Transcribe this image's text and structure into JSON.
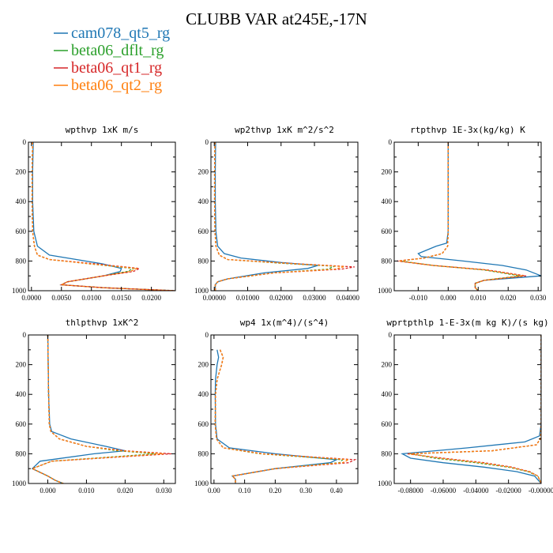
{
  "title": "CLUBB VAR at245E,-17N",
  "colors": {
    "cam078_qt5_rg": "#1f77b4",
    "beta06_dflt_rg": "#2ca02c",
    "beta06_qt1_rg": "#d62728",
    "beta06_qt2_rg": "#ff7f0e"
  },
  "legend": [
    {
      "name": "cam078_qt5_rg",
      "color": "#1f77b4",
      "dash": "solid"
    },
    {
      "name": "beta06_dflt_rg",
      "color": "#2ca02c",
      "dash": "dashed"
    },
    {
      "name": "beta06_qt1_rg",
      "color": "#d62728",
      "dash": "dashed"
    },
    {
      "name": "beta06_qt2_rg",
      "color": "#ff7f0e",
      "dash": "dashed"
    }
  ],
  "chart_data": [
    {
      "type": "line",
      "title": "wpthvp  1xK m/s",
      "xlim": [
        -0.0005,
        0.024
      ],
      "ylim": [
        0,
        1000
      ],
      "xticks": [
        0.0,
        0.005,
        0.01,
        0.015,
        0.02
      ],
      "xticklabels": [
        "0.0000",
        "0.0050",
        "0.0100",
        "0.0150",
        "0.0200"
      ],
      "yticks": [
        0,
        200,
        400,
        600,
        800,
        1000
      ],
      "series": [
        {
          "key": "cam078_qt5_rg",
          "y": [
            0,
            200,
            400,
            600,
            700,
            760,
            780,
            820,
            850,
            870,
            900,
            940,
            960,
            980,
            1000
          ],
          "x": [
            0.0003,
            0.0002,
            0.0002,
            0.0004,
            0.001,
            0.003,
            0.006,
            0.012,
            0.015,
            0.0148,
            0.012,
            0.006,
            0.005,
            0.012,
            0.024
          ]
        },
        {
          "key": "beta06_dflt_rg",
          "y": [
            0,
            200,
            400,
            600,
            700,
            760,
            790,
            820,
            850,
            870,
            900,
            940,
            960,
            980,
            1000
          ],
          "x": [
            0.0002,
            0.0001,
            0.0001,
            0.0002,
            0.0005,
            0.001,
            0.003,
            0.01,
            0.017,
            0.016,
            0.012,
            0.006,
            0.005,
            0.012,
            0.024
          ]
        },
        {
          "key": "beta06_qt1_rg",
          "y": [
            0,
            200,
            400,
            600,
            700,
            760,
            790,
            820,
            850,
            870,
            900,
            940,
            960,
            980,
            1000
          ],
          "x": [
            0.0002,
            0.0001,
            0.0001,
            0.0002,
            0.0005,
            0.001,
            0.003,
            0.011,
            0.018,
            0.017,
            0.012,
            0.006,
            0.005,
            0.012,
            0.024
          ]
        },
        {
          "key": "beta06_qt2_rg",
          "y": [
            0,
            200,
            400,
            600,
            700,
            760,
            790,
            820,
            850,
            870,
            900,
            940,
            960,
            980,
            1000
          ],
          "x": [
            0.0002,
            0.0001,
            0.0001,
            0.0002,
            0.0005,
            0.001,
            0.003,
            0.01,
            0.0175,
            0.0165,
            0.012,
            0.006,
            0.005,
            0.012,
            0.024
          ]
        }
      ]
    },
    {
      "type": "line",
      "title": "wp2thvp  1xK m^2/s^2",
      "xlim": [
        -0.001,
        0.043
      ],
      "ylim": [
        0,
        1000
      ],
      "xticks": [
        0.0,
        0.01,
        0.02,
        0.03,
        0.04
      ],
      "xticklabels": [
        "0.00000",
        "0.01000",
        "0.02000",
        "0.03000",
        "0.04000"
      ],
      "yticks": [
        0,
        200,
        400,
        600,
        800,
        1000
      ],
      "series": [
        {
          "key": "cam078_qt5_rg",
          "y": [
            0,
            200,
            400,
            600,
            700,
            750,
            780,
            810,
            830,
            850,
            880,
            920,
            940,
            960,
            1000
          ],
          "x": [
            0.0004,
            0.0003,
            0.0003,
            0.0005,
            0.001,
            0.003,
            0.008,
            0.02,
            0.031,
            0.028,
            0.015,
            0.004,
            0.001,
            0.0003,
            0.0003
          ]
        },
        {
          "key": "beta06_dflt_rg",
          "y": [
            0,
            200,
            400,
            600,
            700,
            760,
            790,
            815,
            835,
            855,
            880,
            920,
            940,
            960,
            1000
          ],
          "x": [
            0.0002,
            0.0001,
            0.0001,
            0.0002,
            0.0005,
            0.0015,
            0.004,
            0.02,
            0.036,
            0.034,
            0.018,
            0.004,
            0.001,
            0.0003,
            0.0003
          ]
        },
        {
          "key": "beta06_qt1_rg",
          "y": [
            0,
            200,
            400,
            600,
            700,
            760,
            790,
            815,
            840,
            855,
            880,
            920,
            940,
            960,
            1000
          ],
          "x": [
            0.0002,
            0.0001,
            0.0001,
            0.0002,
            0.0005,
            0.0015,
            0.004,
            0.022,
            0.042,
            0.038,
            0.018,
            0.004,
            0.001,
            0.0003,
            0.0003
          ]
        },
        {
          "key": "beta06_qt2_rg",
          "y": [
            0,
            200,
            400,
            600,
            700,
            760,
            790,
            815,
            838,
            855,
            880,
            920,
            940,
            960,
            1000
          ],
          "x": [
            0.0002,
            0.0001,
            0.0001,
            0.0002,
            0.0005,
            0.0015,
            0.004,
            0.021,
            0.039,
            0.036,
            0.018,
            0.004,
            0.001,
            0.0003,
            0.0003
          ]
        }
      ]
    },
    {
      "type": "line",
      "title": "rtpthvp  1E-3x(kg/kg) K",
      "xlim": [
        -0.018,
        0.031
      ],
      "ylim": [
        0,
        1000
      ],
      "xticks": [
        -0.01,
        0.0,
        0.01,
        0.02,
        0.03
      ],
      "xticklabels": [
        "-0.010",
        "0.000",
        "0.010",
        "0.020",
        "0.030"
      ],
      "yticks": [
        0,
        200,
        400,
        600,
        800,
        1000
      ],
      "series": [
        {
          "key": "cam078_qt5_rg",
          "y": [
            0,
            300,
            600,
            680,
            700,
            750,
            770,
            800,
            830,
            860,
            900,
            930,
            950,
            980,
            1000
          ],
          "x": [
            0.0,
            0.0,
            0.0,
            -0.0005,
            -0.004,
            -0.01,
            -0.009,
            0.005,
            0.018,
            0.026,
            0.031,
            0.012,
            0.009,
            0.009,
            0.01
          ]
        },
        {
          "key": "beta06_dflt_rg",
          "y": [
            0,
            300,
            600,
            700,
            750,
            780,
            800,
            830,
            860,
            900,
            930,
            950,
            980,
            1000
          ],
          "x": [
            0.0,
            0.0,
            0.0,
            -0.0002,
            -0.002,
            -0.008,
            -0.016,
            -0.005,
            0.012,
            0.024,
            0.012,
            0.009,
            0.009,
            0.01
          ]
        },
        {
          "key": "beta06_qt1_rg",
          "y": [
            0,
            300,
            600,
            700,
            750,
            780,
            800,
            830,
            860,
            900,
            930,
            950,
            980,
            1000
          ],
          "x": [
            0.0,
            0.0,
            0.0,
            -0.0002,
            -0.002,
            -0.008,
            -0.017,
            -0.005,
            0.013,
            0.026,
            0.012,
            0.009,
            0.009,
            0.01
          ]
        },
        {
          "key": "beta06_qt2_rg",
          "y": [
            0,
            300,
            600,
            700,
            750,
            780,
            800,
            830,
            860,
            900,
            930,
            950,
            980,
            1000
          ],
          "x": [
            0.0,
            0.0,
            0.0,
            -0.0002,
            -0.002,
            -0.008,
            -0.0165,
            -0.005,
            0.0125,
            0.025,
            0.012,
            0.009,
            0.009,
            0.01
          ]
        }
      ]
    },
    {
      "type": "line",
      "title": "thlpthvp  1xK^2",
      "xlim": [
        -0.005,
        0.033
      ],
      "ylim": [
        0,
        1000
      ],
      "xticks": [
        0.0,
        0.01,
        0.02,
        0.03
      ],
      "xticklabels": [
        "0.000",
        "0.010",
        "0.020",
        "0.030"
      ],
      "yticks": [
        0,
        200,
        400,
        600,
        800,
        1000
      ],
      "series": [
        {
          "key": "cam078_qt5_rg",
          "y": [
            0,
            200,
            400,
            600,
            650,
            700,
            750,
            780,
            800,
            850,
            900,
            950,
            980,
            1000
          ],
          "x": [
            0.0,
            0.0001,
            0.0002,
            0.0005,
            0.001,
            0.006,
            0.015,
            0.02,
            0.012,
            -0.002,
            -0.004,
            0.0,
            0.002,
            0.004
          ]
        },
        {
          "key": "beta06_dflt_rg",
          "y": [
            0,
            200,
            400,
            600,
            650,
            700,
            750,
            780,
            800,
            850,
            900,
            950,
            980,
            1000
          ],
          "x": [
            0.0,
            0.0001,
            0.0002,
            0.0004,
            0.0008,
            0.003,
            0.01,
            0.018,
            0.028,
            0.001,
            -0.004,
            0.0,
            0.002,
            0.004
          ]
        },
        {
          "key": "beta06_qt1_rg",
          "y": [
            0,
            200,
            400,
            600,
            650,
            700,
            750,
            780,
            800,
            850,
            900,
            950,
            980,
            1000
          ],
          "x": [
            0.0,
            0.0001,
            0.0002,
            0.0004,
            0.0008,
            0.003,
            0.01,
            0.02,
            0.032,
            0.001,
            -0.004,
            0.0,
            0.002,
            0.004
          ]
        },
        {
          "key": "beta06_qt2_rg",
          "y": [
            0,
            200,
            400,
            600,
            650,
            700,
            750,
            780,
            800,
            850,
            900,
            950,
            980,
            1000
          ],
          "x": [
            0.0,
            0.0001,
            0.0002,
            0.0004,
            0.0008,
            0.003,
            0.01,
            0.019,
            0.03,
            0.001,
            -0.004,
            0.0,
            0.002,
            0.004
          ]
        }
      ]
    },
    {
      "type": "line",
      "title": "wp4  1x(m^4)/(s^4)",
      "xlim": [
        -0.01,
        0.47
      ],
      "ylim": [
        0,
        1000
      ],
      "xticks": [
        0.0,
        0.1,
        0.2,
        0.3,
        0.4
      ],
      "xticklabels": [
        "0.00",
        "0.10",
        "0.20",
        "0.30",
        "0.40"
      ],
      "yticks": [
        0,
        200,
        400,
        600,
        800,
        1000
      ],
      "series": [
        {
          "key": "cam078_qt5_rg",
          "y": [
            100,
            150,
            200,
            300,
            400,
            600,
            700,
            760,
            800,
            840,
            860,
            900,
            950,
            970,
            1000
          ],
          "x": [
            0.01,
            0.015,
            0.01,
            0.005,
            0.004,
            0.005,
            0.01,
            0.05,
            0.2,
            0.4,
            0.38,
            0.2,
            0.06,
            0.07,
            0.07
          ]
        },
        {
          "key": "beta06_dflt_rg",
          "y": [
            100,
            150,
            200,
            300,
            400,
            600,
            700,
            760,
            800,
            840,
            860,
            900,
            950,
            970,
            1000
          ],
          "x": [
            0.02,
            0.03,
            0.025,
            0.01,
            0.005,
            0.004,
            0.008,
            0.03,
            0.15,
            0.42,
            0.41,
            0.2,
            0.06,
            0.07,
            0.07
          ]
        },
        {
          "key": "beta06_qt1_rg",
          "y": [
            100,
            150,
            200,
            300,
            400,
            600,
            700,
            760,
            800,
            840,
            860,
            900,
            950,
            970,
            1000
          ],
          "x": [
            0.02,
            0.03,
            0.025,
            0.01,
            0.005,
            0.004,
            0.008,
            0.03,
            0.16,
            0.46,
            0.44,
            0.2,
            0.06,
            0.07,
            0.07
          ]
        },
        {
          "key": "beta06_qt2_rg",
          "y": [
            100,
            150,
            200,
            300,
            400,
            600,
            700,
            760,
            800,
            840,
            860,
            900,
            950,
            970,
            1000
          ],
          "x": [
            0.02,
            0.03,
            0.025,
            0.01,
            0.005,
            0.004,
            0.008,
            0.03,
            0.155,
            0.44,
            0.42,
            0.2,
            0.06,
            0.07,
            0.07
          ]
        }
      ]
    },
    {
      "type": "line",
      "title": "wprtpthlp  1-E-3x(m kg K)/(s kg)",
      "xlim": [
        -0.09,
        0.0
      ],
      "ylim": [
        0,
        1000
      ],
      "xticks": [
        -0.08,
        -0.06,
        -0.04,
        -0.02,
        0.0
      ],
      "xticklabels": [
        "-0.08000",
        "-0.06000",
        "-0.04000",
        "-0.02000",
        "-0.00000"
      ],
      "yticks": [
        0,
        200,
        400,
        600,
        800,
        1000
      ],
      "series": [
        {
          "key": "cam078_qt5_rg",
          "y": [
            0,
            300,
            600,
            680,
            720,
            760,
            800,
            830,
            860,
            890,
            920,
            950,
            1000
          ],
          "x": [
            0.0,
            0.0,
            0.0,
            -0.001,
            -0.01,
            -0.045,
            -0.085,
            -0.08,
            -0.06,
            -0.035,
            -0.015,
            -0.004,
            0.0
          ]
        },
        {
          "key": "beta06_dflt_rg",
          "y": [
            0,
            300,
            600,
            700,
            740,
            780,
            800,
            830,
            860,
            890,
            920,
            950,
            1000
          ],
          "x": [
            0.0,
            0.0,
            0.0,
            -0.0005,
            -0.003,
            -0.03,
            -0.08,
            -0.065,
            -0.04,
            -0.02,
            -0.008,
            -0.002,
            0.0
          ]
        },
        {
          "key": "beta06_qt1_rg",
          "y": [
            0,
            300,
            600,
            700,
            740,
            780,
            800,
            830,
            860,
            890,
            920,
            950,
            1000
          ],
          "x": [
            0.0,
            0.0,
            0.0,
            -0.0005,
            -0.003,
            -0.03,
            -0.082,
            -0.06,
            -0.035,
            -0.018,
            -0.007,
            -0.002,
            0.0
          ]
        },
        {
          "key": "beta06_qt2_rg",
          "y": [
            0,
            300,
            600,
            700,
            740,
            780,
            800,
            830,
            860,
            890,
            920,
            950,
            1000
          ],
          "x": [
            0.0,
            0.0,
            0.0,
            -0.0005,
            -0.003,
            -0.03,
            -0.081,
            -0.062,
            -0.037,
            -0.019,
            -0.0075,
            -0.002,
            0.0
          ]
        }
      ]
    }
  ]
}
